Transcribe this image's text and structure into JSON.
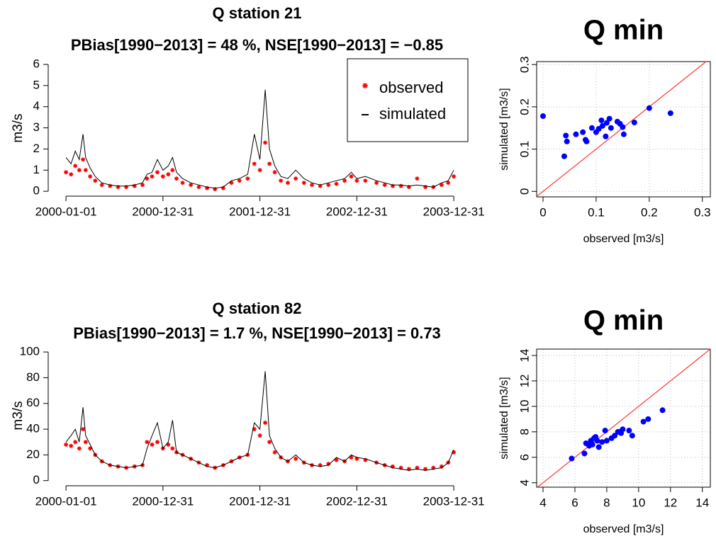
{
  "chart_data": [
    {
      "type": "line",
      "title": "Q station 21",
      "subtitle": "PBias[1990−2013] = 48 %, NSE[1990−2013] = −0.85",
      "y_label": "m3/s",
      "x": [
        "2000-01-01",
        "2000-01-20",
        "2000-02-05",
        "2000-02-20",
        "2000-03-05",
        "2000-03-15",
        "2000-04-01",
        "2000-04-20",
        "2000-05-15",
        "2000-06-15",
        "2000-07-15",
        "2000-08-15",
        "2000-09-15",
        "2000-10-15",
        "2000-11-01",
        "2000-11-20",
        "2000-12-10",
        "2000-12-31",
        "2001-01-20",
        "2001-02-05",
        "2001-02-20",
        "2001-03-15",
        "2001-04-15",
        "2001-05-15",
        "2001-06-15",
        "2001-07-15",
        "2001-08-15",
        "2001-09-15",
        "2001-10-15",
        "2001-11-15",
        "2001-12-10",
        "2001-12-31",
        "2002-01-20",
        "2002-02-05",
        "2002-02-25",
        "2002-03-20",
        "2002-04-15",
        "2002-05-15",
        "2002-06-15",
        "2002-07-15",
        "2002-08-15",
        "2002-09-15",
        "2002-10-15",
        "2002-11-15",
        "2002-12-10",
        "2002-12-31",
        "2003-02-01",
        "2003-03-15",
        "2003-04-15",
        "2003-05-15",
        "2003-06-15",
        "2003-07-15",
        "2003-08-15",
        "2003-09-15",
        "2003-10-15",
        "2003-11-15",
        "2003-12-10",
        "2003-12-31"
      ],
      "series": [
        {
          "name": "observed",
          "color": "#ff0000",
          "style": "points",
          "values": [
            0.9,
            0.8,
            1.2,
            1.0,
            1.5,
            1.0,
            0.7,
            0.5,
            0.3,
            0.25,
            0.2,
            0.2,
            0.25,
            0.3,
            0.6,
            0.7,
            0.9,
            0.7,
            0.8,
            1.0,
            0.6,
            0.4,
            0.3,
            0.2,
            0.15,
            0.1,
            0.15,
            0.4,
            0.5,
            0.6,
            1.3,
            1.0,
            2.3,
            1.3,
            0.9,
            0.5,
            0.4,
            0.6,
            0.4,
            0.3,
            0.25,
            0.3,
            0.35,
            0.5,
            0.7,
            0.5,
            0.5,
            0.4,
            0.3,
            0.25,
            0.25,
            0.2,
            0.6,
            0.2,
            0.2,
            0.3,
            0.4,
            0.7
          ]
        },
        {
          "name": "simulated",
          "color": "#000000",
          "style": "line",
          "values": [
            1.6,
            1.3,
            1.9,
            1.5,
            2.7,
            1.6,
            1.1,
            0.7,
            0.4,
            0.3,
            0.25,
            0.25,
            0.3,
            0.4,
            0.8,
            0.9,
            1.5,
            1.0,
            1.2,
            1.6,
            0.9,
            0.6,
            0.4,
            0.3,
            0.2,
            0.15,
            0.2,
            0.5,
            0.6,
            0.8,
            2.7,
            1.5,
            4.8,
            2.0,
            1.2,
            0.7,
            0.6,
            1.0,
            0.6,
            0.4,
            0.3,
            0.4,
            0.5,
            0.6,
            0.9,
            0.6,
            0.7,
            0.5,
            0.4,
            0.3,
            0.3,
            0.25,
            0.3,
            0.25,
            0.2,
            0.4,
            0.5,
            1.0
          ]
        }
      ],
      "xlim": [
        "1999-10-26",
        "2004-02-14"
      ],
      "xticks": [
        "2000-01-01",
        "2000-12-31",
        "2001-12-31",
        "2002-12-31",
        "2003-12-31"
      ],
      "ylim": [
        -0.23,
        6.2
      ],
      "yticks": [
        0,
        1,
        2,
        3,
        4,
        5,
        6
      ],
      "legend": "top-right"
    },
    {
      "type": "scatter",
      "title": "Q min",
      "x_label": "observed [m3/s]",
      "y_label": "simulated [m3/s]",
      "color": "#0000ff",
      "x": [
        0,
        0.04,
        0.043,
        0.045,
        0.062,
        0.075,
        0.08,
        0.082,
        0.092,
        0.1,
        0.105,
        0.11,
        0.112,
        0.118,
        0.12,
        0.125,
        0.128,
        0.14,
        0.145,
        0.15,
        0.152,
        0.172,
        0.2,
        0.24
      ],
      "values": [
        0.178,
        0.083,
        0.132,
        0.118,
        0.135,
        0.14,
        0.122,
        0.118,
        0.15,
        0.14,
        0.148,
        0.168,
        0.155,
        0.13,
        0.162,
        0.172,
        0.15,
        0.165,
        0.16,
        0.152,
        0.135,
        0.163,
        0.197,
        0.185
      ],
      "xlim": [
        -0.012,
        0.315
      ],
      "xticks": [
        0,
        0.1,
        0.2,
        0.3
      ],
      "ylim": [
        -0.013,
        0.307
      ],
      "yticks": [
        0,
        0.1,
        0.2,
        0.3
      ],
      "grid": true,
      "identity_line": "#ff4040"
    },
    {
      "type": "line",
      "title": "Q station 82",
      "subtitle": "PBias[1990−2013] = 1.7 %, NSE[1990−2013] = 0.73",
      "y_label": "m3/s",
      "x": [
        "2000-01-01",
        "2000-01-20",
        "2000-02-05",
        "2000-02-20",
        "2000-03-05",
        "2000-03-15",
        "2000-04-01",
        "2000-04-20",
        "2000-05-15",
        "2000-06-15",
        "2000-07-15",
        "2000-08-15",
        "2000-09-15",
        "2000-10-15",
        "2000-11-01",
        "2000-11-20",
        "2000-12-10",
        "2000-12-31",
        "2001-01-20",
        "2001-02-05",
        "2001-02-20",
        "2001-03-15",
        "2001-04-15",
        "2001-05-15",
        "2001-06-15",
        "2001-07-15",
        "2001-08-15",
        "2001-09-15",
        "2001-10-15",
        "2001-11-15",
        "2001-12-10",
        "2001-12-31",
        "2002-01-20",
        "2002-02-05",
        "2002-02-25",
        "2002-03-20",
        "2002-04-15",
        "2002-05-15",
        "2002-06-15",
        "2002-07-15",
        "2002-08-15",
        "2002-09-15",
        "2002-10-15",
        "2002-11-15",
        "2002-12-10",
        "2002-12-31",
        "2003-02-01",
        "2003-03-15",
        "2003-04-15",
        "2003-05-15",
        "2003-06-15",
        "2003-07-15",
        "2003-08-15",
        "2003-09-15",
        "2003-10-15",
        "2003-11-15",
        "2003-12-10",
        "2003-12-31"
      ],
      "series": [
        {
          "color": "#ff0000",
          "style": "points",
          "values": [
            28,
            27,
            30,
            25,
            40,
            30,
            25,
            20,
            15,
            12,
            11,
            10,
            11,
            12,
            30,
            28,
            30,
            25,
            28,
            25,
            22,
            20,
            17,
            14,
            12,
            10,
            12,
            15,
            18,
            20,
            40,
            35,
            45,
            30,
            22,
            18,
            15,
            17,
            14,
            12,
            12,
            13,
            16,
            15,
            18,
            17,
            16,
            14,
            12,
            11,
            10,
            9,
            10,
            9,
            10,
            11,
            14,
            22
          ]
        },
        {
          "color": "#000000",
          "style": "line",
          "values": [
            30,
            35,
            40,
            30,
            57,
            35,
            28,
            20,
            15,
            12,
            11,
            10,
            11,
            12,
            25,
            35,
            45,
            25,
            30,
            47,
            22,
            20,
            17,
            14,
            11,
            10,
            12,
            15,
            18,
            20,
            45,
            40,
            85,
            35,
            25,
            18,
            15,
            20,
            14,
            12,
            11,
            12,
            18,
            15,
            20,
            18,
            17,
            14,
            12,
            10,
            9,
            8,
            9,
            8,
            9,
            10,
            14,
            24
          ]
        }
      ],
      "xlim": [
        "1999-10-26",
        "2004-02-14"
      ],
      "xticks": [
        "2000-01-01",
        "2000-12-31",
        "2001-12-31",
        "2002-12-31",
        "2003-12-31"
      ],
      "ylim": [
        -4,
        105
      ],
      "yticks": [
        0,
        20,
        40,
        60,
        80,
        100
      ]
    },
    {
      "type": "scatter",
      "title": "Q min",
      "x_label": "observed [m3/s]",
      "y_label": "simulated [m3/s]",
      "color": "#0000ff",
      "x": [
        5.8,
        6.6,
        6.7,
        6.9,
        7.0,
        7.1,
        7.2,
        7.3,
        7.5,
        7.7,
        7.9,
        8.0,
        8.3,
        8.5,
        8.7,
        8.9,
        9.0,
        9.4,
        9.6,
        10.3,
        10.6,
        11.5,
        8.8,
        7.4
      ],
      "values": [
        5.9,
        6.3,
        7.1,
        6.9,
        7.3,
        7.0,
        7.5,
        7.6,
        6.8,
        7.2,
        8.1,
        7.3,
        7.5,
        7.7,
        8.0,
        7.9,
        8.2,
        8.1,
        7.7,
        8.8,
        9.0,
        9.7,
        8.0,
        7.3
      ],
      "xlim": [
        3.6,
        14.5
      ],
      "xticks": [
        4,
        6,
        8,
        10,
        12,
        14
      ],
      "ylim": [
        3.65,
        14.5
      ],
      "yticks": [
        4,
        6,
        8,
        10,
        12,
        14
      ],
      "grid": true,
      "identity_line": "#ff4040"
    }
  ]
}
